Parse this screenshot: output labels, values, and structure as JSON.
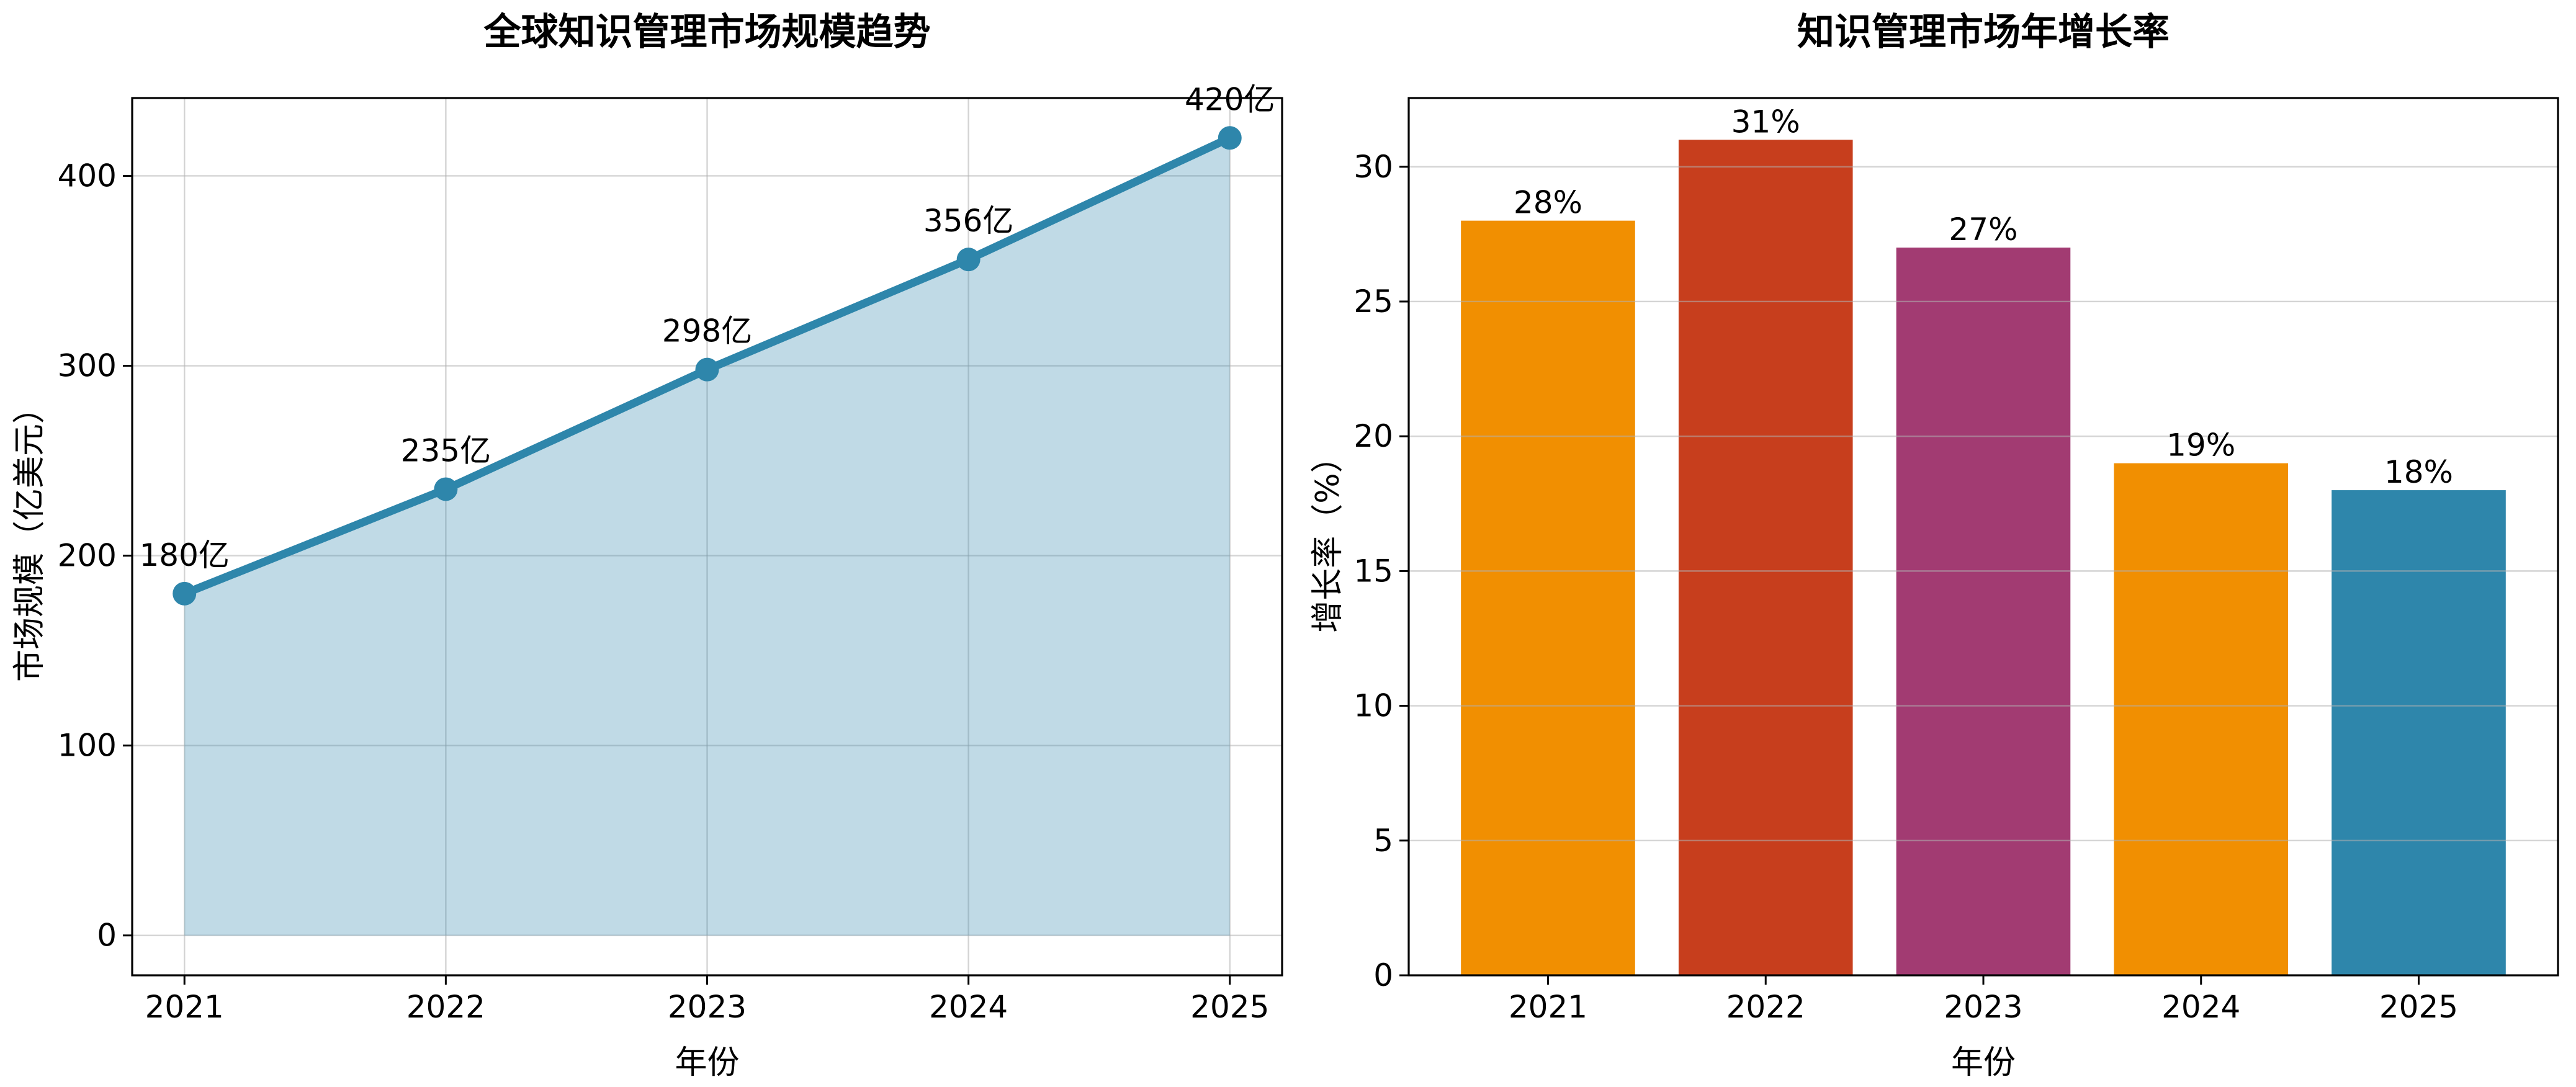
{
  "page": {
    "background": "#ffffff"
  },
  "style": {
    "axis_color": "#000000",
    "grid_color": "rgba(176,176,176,0.55)",
    "text_color": "#000000"
  },
  "chart_data": [
    {
      "type": "area",
      "title": "全球知识管理市场规模趋势",
      "xlabel": "年份",
      "ylabel": "市场规模（亿美元）",
      "categories": [
        "2021",
        "2022",
        "2023",
        "2024",
        "2025"
      ],
      "x": [
        2021,
        2022,
        2023,
        2024,
        2025
      ],
      "values": [
        180,
        235,
        298,
        356,
        420
      ],
      "point_labels": [
        "180亿",
        "235亿",
        "298亿",
        "356亿",
        "420亿"
      ],
      "y_ticks": [
        0,
        100,
        200,
        300,
        400
      ],
      "xlim": [
        2020.8,
        2025.2
      ],
      "ylim": [
        -21,
        441
      ],
      "line_color": "#2E86AB",
      "fill_color": "#2E86AB",
      "fill_opacity": 0.3,
      "grid": "both",
      "legend": "none"
    },
    {
      "type": "bar",
      "title": "知识管理市场年增长率",
      "xlabel": "年份",
      "ylabel": "增长率（%）",
      "categories": [
        "2021",
        "2022",
        "2023",
        "2024",
        "2025"
      ],
      "x": [
        2021,
        2022,
        2023,
        2024,
        2025
      ],
      "values": [
        28,
        31,
        27,
        19,
        18
      ],
      "bar_labels": [
        "28%",
        "31%",
        "27%",
        "19%",
        "18%"
      ],
      "bar_colors": [
        "#F18F01",
        "#C73E1D",
        "#A23B72",
        "#F18F01",
        "#2E86AB"
      ],
      "y_ticks": [
        0,
        5,
        10,
        15,
        20,
        25,
        30
      ],
      "xlim": [
        2020.36,
        2025.64
      ],
      "ylim": [
        0,
        32.55
      ],
      "bar_width": 0.8,
      "grid": "y",
      "legend": "none"
    }
  ]
}
